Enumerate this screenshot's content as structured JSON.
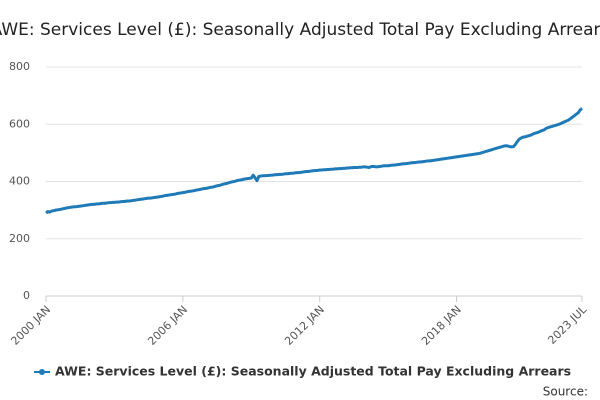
{
  "chart_data": {
    "type": "line",
    "title": "AWE: Services Level (£): Seasonally Adjusted Total Pay Excluding Arrears",
    "source": "Source:",
    "x": [
      "2000 JAN",
      null,
      null,
      null,
      null,
      null,
      null,
      null,
      null,
      null,
      null,
      null,
      null,
      null,
      null,
      null,
      null,
      null,
      null,
      null,
      null,
      null,
      null,
      null,
      null,
      null,
      null,
      null,
      null,
      null,
      null,
      null,
      null,
      null,
      null,
      null,
      null,
      null,
      null,
      null,
      null,
      null,
      null,
      null,
      null,
      null,
      null,
      null,
      null,
      null,
      null,
      null,
      null,
      null,
      null,
      null,
      null,
      null,
      null,
      null,
      null,
      null,
      null,
      null,
      null,
      null,
      null,
      null,
      null,
      null,
      null,
      null,
      "2006 JAN",
      null,
      null,
      null,
      null,
      null,
      null,
      null,
      null,
      null,
      null,
      null,
      null,
      null,
      null,
      null,
      null,
      null,
      null,
      null,
      null,
      null,
      null,
      null,
      null,
      null,
      null,
      null,
      null,
      null,
      null,
      null,
      null,
      null,
      null,
      null,
      null,
      null,
      null,
      null,
      null,
      null,
      null,
      null,
      null,
      null,
      null,
      null,
      null,
      null,
      null,
      null,
      null,
      null,
      null,
      null,
      null,
      null,
      null,
      null,
      null,
      null,
      null,
      null,
      null,
      null,
      null,
      null,
      null,
      null,
      null,
      null,
      "2012 JAN",
      null,
      null,
      null,
      null,
      null,
      null,
      null,
      null,
      null,
      null,
      null,
      null,
      null,
      null,
      null,
      null,
      null,
      null,
      null,
      null,
      null,
      null,
      null,
      null,
      null,
      null,
      null,
      null,
      null,
      null,
      null,
      null,
      null,
      null,
      null,
      null,
      null,
      null,
      null,
      null,
      null,
      null,
      null,
      null,
      null,
      null,
      null,
      null,
      null,
      null,
      null,
      null,
      null,
      null,
      null,
      null,
      null,
      null,
      null,
      null,
      null,
      null,
      null,
      null,
      null,
      null,
      null,
      null,
      null,
      null,
      null,
      "2018 JAN",
      null,
      null,
      null,
      null,
      null,
      null,
      null,
      null,
      null,
      null,
      null,
      null,
      null,
      null,
      null,
      null,
      null,
      null,
      null,
      null,
      null,
      null,
      null,
      null,
      null,
      null,
      null,
      null,
      null,
      null,
      null,
      null,
      null,
      null,
      null,
      null,
      null,
      null,
      null,
      null,
      null,
      null,
      null,
      null,
      null,
      null,
      null,
      null,
      null,
      null,
      null,
      null,
      null,
      null,
      null,
      null,
      null,
      null,
      null,
      null,
      null,
      null,
      null,
      null,
      null,
      "2023 JUL"
    ],
    "series": [
      {
        "name": "AWE: Services Level (£): Seasonally Adjusted Total Pay Excluding Arrears",
        "color": "#1f7ab8",
        "values": [
          290,
          295,
          293,
          297,
          298,
          300,
          301,
          302,
          303,
          305,
          306,
          308,
          309,
          310,
          311,
          312,
          312,
          313,
          314,
          315,
          316,
          317,
          318,
          319,
          320,
          320,
          321,
          322,
          322,
          323,
          324,
          324,
          325,
          326,
          326,
          327,
          327,
          328,
          328,
          329,
          330,
          330,
          331,
          332,
          332,
          333,
          334,
          335,
          336,
          337,
          338,
          339,
          340,
          341,
          342,
          342,
          343,
          344,
          345,
          346,
          347,
          348,
          350,
          351,
          352,
          353,
          354,
          355,
          356,
          358,
          359,
          360,
          361,
          362,
          364,
          365,
          366,
          367,
          368,
          370,
          371,
          372,
          374,
          375,
          376,
          377,
          379,
          380,
          381,
          383,
          385,
          386,
          388,
          390,
          392,
          393,
          395,
          397,
          399,
          400,
          402,
          404,
          405,
          406,
          408,
          409,
          410,
          411,
          412,
          422,
          413,
          403,
          418,
          419,
          420,
          420,
          421,
          421,
          422,
          422,
          423,
          424,
          424,
          425,
          425,
          426,
          427,
          427,
          428,
          429,
          429,
          430,
          431,
          431,
          432,
          433,
          434,
          435,
          435,
          436,
          437,
          438,
          438,
          439,
          440,
          440,
          441,
          441,
          442,
          442,
          443,
          443,
          444,
          444,
          445,
          445,
          446,
          446,
          447,
          447,
          448,
          448,
          449,
          449,
          449,
          450,
          450,
          451,
          451,
          450,
          449,
          452,
          453,
          452,
          451,
          452,
          453,
          454,
          455,
          455,
          455,
          456,
          457,
          457,
          458,
          459,
          460,
          461,
          462,
          462,
          463,
          464,
          465,
          466,
          466,
          467,
          468,
          468,
          469,
          470,
          471,
          472,
          472,
          473,
          474,
          475,
          476,
          477,
          478,
          479,
          480,
          481,
          482,
          483,
          484,
          485,
          486,
          487,
          488,
          489,
          490,
          491,
          492,
          493,
          494,
          495,
          496,
          497,
          498,
          500,
          502,
          504,
          506,
          508,
          510,
          512,
          514,
          516,
          518,
          520,
          522,
          524,
          525,
          524,
          522,
          521,
          522,
          530,
          540,
          548,
          552,
          555,
          556,
          558,
          560,
          562,
          565,
          568,
          570,
          572,
          575,
          578,
          580,
          585,
          588,
          590,
          592,
          594,
          596,
          598,
          600,
          603,
          606,
          609,
          612,
          615,
          620,
          625,
          630,
          635,
          640,
          650,
          655
        ]
      }
    ],
    "ylim": [
      0,
      800
    ],
    "yticks": [
      0,
      200,
      400,
      600,
      800
    ],
    "grid": true
  }
}
